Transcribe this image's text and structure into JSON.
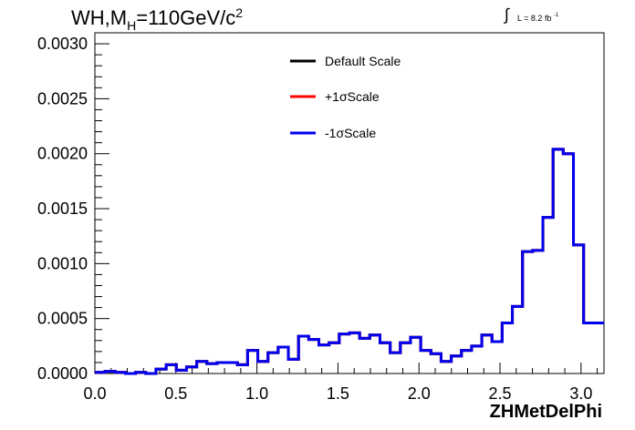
{
  "title": {
    "main": "WH,M",
    "sub": "H",
    "rest": "=110GeV/c",
    "sup": "2"
  },
  "lumi": {
    "integral": "∫",
    "text": "L = 8.2 fb",
    "sup": "-1"
  },
  "chart_data": {
    "type": "line",
    "xlabel": "ZHMetDelPhi",
    "ylabel": "",
    "xlim": [
      0,
      3.1416
    ],
    "ylim": [
      0,
      0.0031
    ],
    "xticks": [
      "0.0",
      "0.5",
      "1.0",
      "1.5",
      "2.0",
      "2.5",
      "3.0"
    ],
    "xtick_values": [
      0,
      0.5,
      1.0,
      1.5,
      2.0,
      2.5,
      3.0
    ],
    "yticks": [
      "0.0000",
      "0.0005",
      "0.0010",
      "0.0015",
      "0.0020",
      "0.0025",
      "0.0030"
    ],
    "ytick_values": [
      0,
      0.0005,
      0.001,
      0.0015,
      0.002,
      0.0025,
      0.003
    ],
    "bins": 50,
    "grid": false,
    "legend_position": "top-center",
    "series": [
      {
        "name": "Default Scale",
        "color": "#000000",
        "values": [
          1e-05,
          2e-05,
          1e-05,
          0.0,
          1e-05,
          0.0,
          4e-05,
          8e-05,
          3e-05,
          6e-05,
          0.00011,
          9e-05,
          0.0001,
          0.0001,
          8e-05,
          0.00021,
          0.00011,
          0.00019,
          0.00024,
          0.00013,
          0.00034,
          0.00031,
          0.00026,
          0.00028,
          0.00036,
          0.00037,
          0.00032,
          0.00035,
          0.00028,
          0.00019,
          0.00028,
          0.00033,
          0.00021,
          0.00018,
          0.00011,
          0.00016,
          0.00021,
          0.00025,
          0.00035,
          0.00029,
          0.00046,
          0.00061,
          0.00111,
          0.00112,
          0.00142,
          0.00204,
          0.002,
          0.00117,
          0.00046,
          0.00046
        ]
      },
      {
        "name": "+1σScale",
        "color": "#ff0000",
        "values": [
          1e-05,
          2e-05,
          1e-05,
          0.0,
          1e-05,
          0.0,
          4e-05,
          8e-05,
          3e-05,
          6e-05,
          0.00011,
          9e-05,
          0.0001,
          0.0001,
          8e-05,
          0.00021,
          0.00011,
          0.00019,
          0.00024,
          0.00013,
          0.00034,
          0.00031,
          0.00026,
          0.00028,
          0.00036,
          0.00037,
          0.00032,
          0.00035,
          0.00028,
          0.00019,
          0.00028,
          0.00033,
          0.00021,
          0.00018,
          0.00011,
          0.00016,
          0.00021,
          0.00025,
          0.00035,
          0.00029,
          0.00046,
          0.00061,
          0.00111,
          0.00112,
          0.00142,
          0.00204,
          0.002,
          0.00117,
          0.00046,
          0.00046
        ]
      },
      {
        "name": "-1σScale",
        "color": "#0000ee",
        "values": [
          1e-05,
          2e-05,
          1e-05,
          0.0,
          1e-05,
          0.0,
          4e-05,
          8e-05,
          3e-05,
          6e-05,
          0.00011,
          9e-05,
          0.0001,
          0.0001,
          8e-05,
          0.00021,
          0.00011,
          0.00019,
          0.00024,
          0.00013,
          0.00034,
          0.00031,
          0.00026,
          0.00028,
          0.00036,
          0.00037,
          0.00032,
          0.00035,
          0.00028,
          0.00019,
          0.00028,
          0.00033,
          0.00021,
          0.00018,
          0.00011,
          0.00016,
          0.00021,
          0.00025,
          0.00035,
          0.00029,
          0.00046,
          0.00061,
          0.00111,
          0.00112,
          0.00142,
          0.00204,
          0.002,
          0.00117,
          0.00046,
          0.00046
        ]
      }
    ]
  }
}
